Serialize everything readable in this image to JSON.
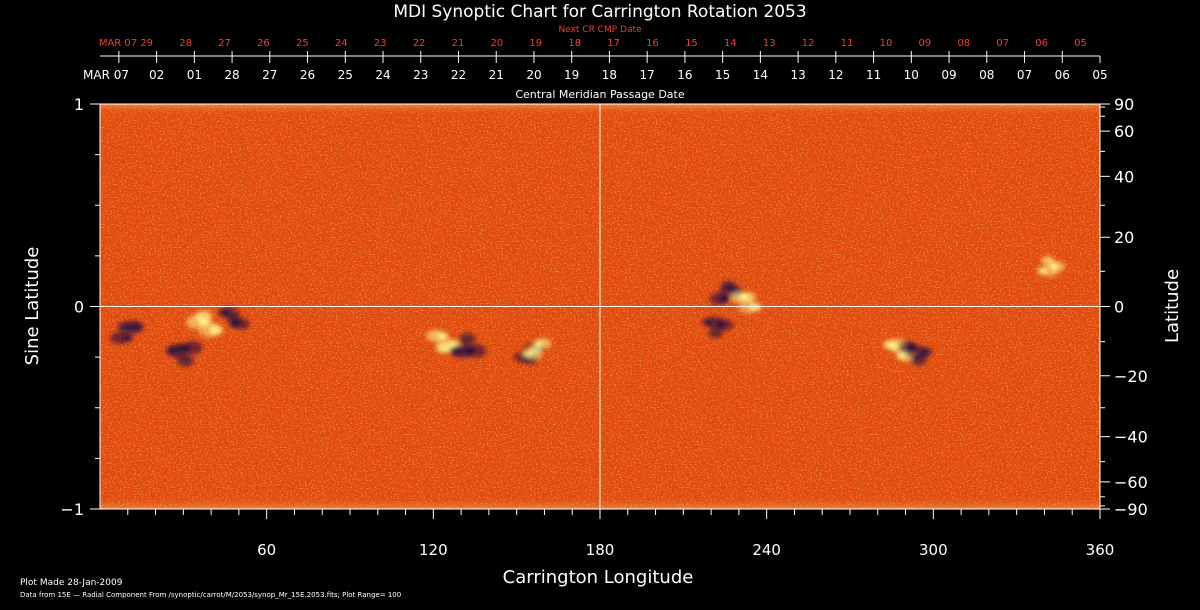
{
  "chart_data": {
    "type": "heatmap",
    "title": "MDI Synoptic Chart for Carrington Rotation 2053",
    "xlabel": "Carrington Longitude",
    "ylabel_left": "Sine Latitude",
    "ylabel_right": "Latitude",
    "top_axis_label": "Central Meridian Passage Date",
    "next_axis_label": "Next CR CMP Date",
    "xlim": [
      0,
      360
    ],
    "ylim": [
      -1,
      1
    ],
    "x_ticks": [
      60,
      120,
      180,
      240,
      300,
      360
    ],
    "y_ticks_left": [
      1,
      0,
      -1
    ],
    "y_tick_labels_left": [
      "1",
      "0",
      "−1"
    ],
    "y_ticks_right_deg": [
      90,
      60,
      40,
      20,
      0,
      -20,
      -40,
      -60,
      -90
    ],
    "y_tick_labels_right": [
      "90",
      "60",
      "40",
      "20",
      "0",
      "−20",
      "−40",
      "−60",
      "−90"
    ],
    "cmp_dates": [
      "MAR 07",
      "02",
      "01",
      "28",
      "27",
      "26",
      "25",
      "24",
      "23",
      "22",
      "21",
      "20",
      "19",
      "18",
      "17",
      "16",
      "15",
      "14",
      "13",
      "12",
      "11",
      "10",
      "09",
      "08",
      "07",
      "06",
      "05"
    ],
    "next_cmp_dates": [
      "MAR 07",
      "29",
      "28",
      "27",
      "26",
      "25",
      "24",
      "23",
      "22",
      "21",
      "20",
      "19",
      "18",
      "17",
      "16",
      "15",
      "14",
      "13",
      "12",
      "11",
      "10",
      "09",
      "08",
      "07",
      "06",
      "05"
    ],
    "plot_range": 100,
    "grid": false,
    "crosshair": {
      "x": 180,
      "y": 0
    },
    "colors": {
      "background": "#000000",
      "field_base": "#e24a0c",
      "positive": "#ffff90",
      "negative": "#1a0a44",
      "axis": "#ffffff",
      "next_axis": "#ff3b1f"
    },
    "active_regions": [
      {
        "lon": 10,
        "sinlat": -0.12,
        "polarity": "negative",
        "strength": 0.6
      },
      {
        "lon": 30,
        "sinlat": -0.23,
        "polarity": "negative",
        "strength": 0.7
      },
      {
        "lon": 38,
        "sinlat": -0.08,
        "polarity": "positive",
        "strength": 0.7
      },
      {
        "lon": 48,
        "sinlat": -0.06,
        "polarity": "negative",
        "strength": 0.5
      },
      {
        "lon": 124,
        "sinlat": -0.18,
        "polarity": "positive",
        "strength": 0.6
      },
      {
        "lon": 132,
        "sinlat": -0.2,
        "polarity": "negative",
        "strength": 0.7
      },
      {
        "lon": 155,
        "sinlat": -0.24,
        "polarity": "negative",
        "strength": 0.5
      },
      {
        "lon": 157,
        "sinlat": -0.21,
        "polarity": "positive",
        "strength": 0.4
      },
      {
        "lon": 226,
        "sinlat": 0.07,
        "polarity": "negative",
        "strength": 0.6
      },
      {
        "lon": 222,
        "sinlat": -0.1,
        "polarity": "negative",
        "strength": 0.5
      },
      {
        "lon": 233,
        "sinlat": 0.03,
        "polarity": "positive",
        "strength": 0.5
      },
      {
        "lon": 287,
        "sinlat": -0.21,
        "polarity": "positive",
        "strength": 0.5
      },
      {
        "lon": 294,
        "sinlat": -0.23,
        "polarity": "negative",
        "strength": 0.6
      },
      {
        "lon": 342,
        "sinlat": 0.2,
        "polarity": "positive",
        "strength": 0.4
      }
    ]
  },
  "footer": {
    "plot_made": "Plot Made 28-Jan-2009",
    "source": "Data from 15E — Radial Component From /synoptic/carrot/M/2053/synop_Mr_15E.2053.fits; Plot Range= 100"
  }
}
